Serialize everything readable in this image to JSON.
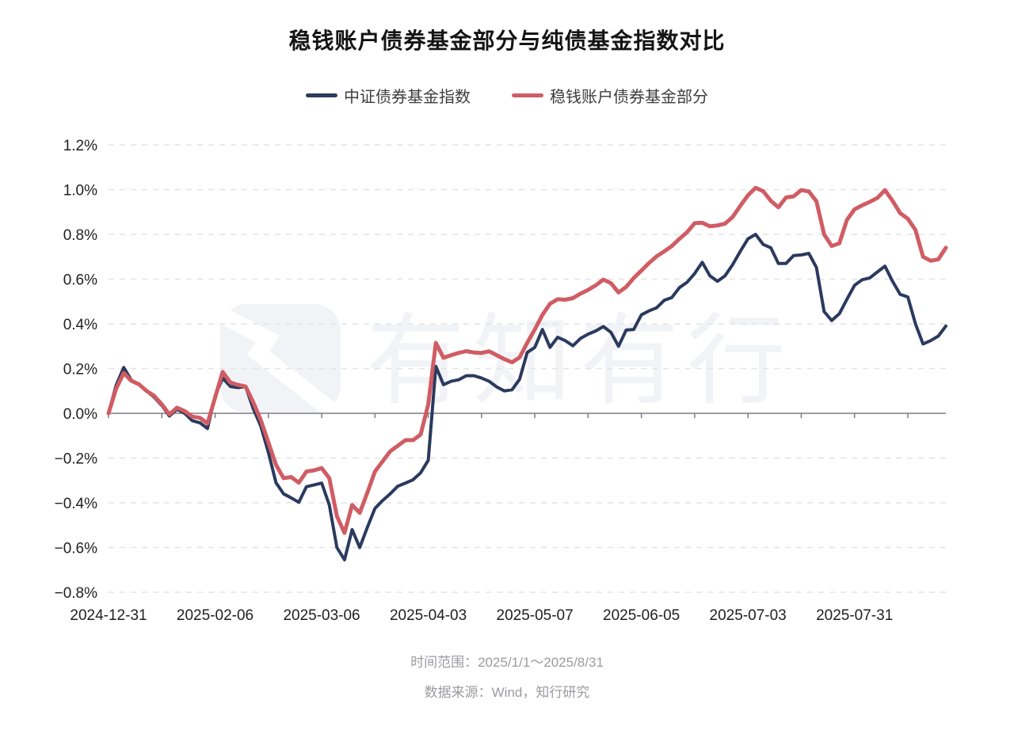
{
  "title": "稳钱账户债券基金部分与纯债基金指数对比",
  "legend": [
    {
      "label": "中证债券基金指数",
      "color": "#2b3a5e"
    },
    {
      "label": "稳钱账户债券基金部分",
      "color": "#d05c64"
    }
  ],
  "watermark": {
    "text": "有知有行",
    "logo": "youzhiyouxing-logo"
  },
  "footer": {
    "line1": "时间范围：2025/1/1～2025/8/31",
    "line2": "数据来源：Wind，知行研究"
  },
  "chart_data": {
    "type": "line",
    "title": "稳钱账户债券基金部分与纯债基金指数对比",
    "xlabel": "",
    "ylabel": "",
    "y_unit": "%",
    "ylim": [
      -0.8,
      1.2
    ],
    "y_step": 0.2,
    "y_ticks": [
      "1.2%",
      "1.0%",
      "0.8%",
      "0.6%",
      "0.4%",
      "0.2%",
      "0.0%",
      "−0.2%",
      "−0.4%",
      "−0.6%",
      "−0.8%"
    ],
    "grid": "horizontal-dashed, solid zero axis with minor ticks",
    "legend_position": "top-center",
    "x_tick_labels": [
      "2024-12-31",
      "2025-02-06",
      "2025-03-06",
      "2025-04-03",
      "2025-05-07",
      "2025-06-05",
      "2025-07-03",
      "2025-07-31"
    ],
    "x_tick_indices": [
      0,
      14,
      28,
      42,
      56,
      70,
      84,
      98
    ],
    "minor_tick_step": 7,
    "series": [
      {
        "name": "中证债券基金指数",
        "color": "#2b3a5e",
        "width": 4,
        "values": [
          0.0,
          0.125,
          0.205,
          0.148,
          0.13,
          0.1,
          0.072,
          0.035,
          -0.012,
          0.018,
          0.0,
          -0.033,
          -0.042,
          -0.068,
          0.078,
          0.158,
          0.12,
          0.115,
          0.12,
          0.022,
          -0.057,
          -0.175,
          -0.31,
          -0.36,
          -0.378,
          -0.398,
          -0.328,
          -0.32,
          -0.312,
          -0.41,
          -0.6,
          -0.655,
          -0.52,
          -0.6,
          -0.51,
          -0.425,
          -0.39,
          -0.36,
          -0.326,
          -0.312,
          -0.297,
          -0.266,
          -0.21,
          0.21,
          0.128,
          0.143,
          0.15,
          0.168,
          0.168,
          0.158,
          0.143,
          0.118,
          0.1,
          0.105,
          0.152,
          0.272,
          0.295,
          0.375,
          0.295,
          0.34,
          0.325,
          0.302,
          0.335,
          0.354,
          0.368,
          0.388,
          0.362,
          0.3,
          0.372,
          0.375,
          0.44,
          0.458,
          0.472,
          0.505,
          0.518,
          0.562,
          0.586,
          0.625,
          0.675,
          0.615,
          0.59,
          0.615,
          0.665,
          0.725,
          0.78,
          0.8,
          0.755,
          0.74,
          0.67,
          0.67,
          0.705,
          0.708,
          0.715,
          0.652,
          0.455,
          0.415,
          0.445,
          0.51,
          0.572,
          0.597,
          0.605,
          0.632,
          0.658,
          0.59,
          0.532,
          0.52,
          0.4,
          0.31,
          0.325,
          0.345,
          0.39
        ]
      },
      {
        "name": "稳钱账户债券基金部分",
        "color": "#d05c64",
        "width": 5,
        "values": [
          0.0,
          0.11,
          0.18,
          0.145,
          0.13,
          0.1,
          0.078,
          0.04,
          -0.005,
          0.025,
          0.01,
          -0.015,
          -0.02,
          -0.045,
          0.07,
          0.185,
          0.138,
          0.127,
          0.12,
          0.05,
          -0.03,
          -0.13,
          -0.23,
          -0.29,
          -0.285,
          -0.31,
          -0.26,
          -0.255,
          -0.245,
          -0.29,
          -0.46,
          -0.535,
          -0.41,
          -0.445,
          -0.355,
          -0.26,
          -0.215,
          -0.17,
          -0.145,
          -0.12,
          -0.12,
          -0.095,
          0.04,
          0.315,
          0.248,
          0.26,
          0.27,
          0.278,
          0.272,
          0.27,
          0.277,
          0.26,
          0.242,
          0.228,
          0.25,
          0.315,
          0.375,
          0.44,
          0.49,
          0.51,
          0.508,
          0.515,
          0.535,
          0.552,
          0.572,
          0.598,
          0.582,
          0.54,
          0.565,
          0.605,
          0.638,
          0.672,
          0.702,
          0.724,
          0.748,
          0.78,
          0.81,
          0.85,
          0.852,
          0.836,
          0.84,
          0.848,
          0.878,
          0.928,
          0.975,
          1.008,
          0.993,
          0.95,
          0.921,
          0.965,
          0.97,
          0.998,
          0.992,
          0.948,
          0.8,
          0.748,
          0.76,
          0.865,
          0.912,
          0.93,
          0.945,
          0.963,
          0.998,
          0.95,
          0.895,
          0.87,
          0.82,
          0.7,
          0.682,
          0.688,
          0.74
        ]
      }
    ],
    "colors": {
      "grid_line": "#e2e3e6",
      "zero_line": "#7d7d82",
      "axis_text": "#1f1f1f",
      "footer_text": "#9b9ba0",
      "watermark": "#f2f3f6"
    }
  }
}
